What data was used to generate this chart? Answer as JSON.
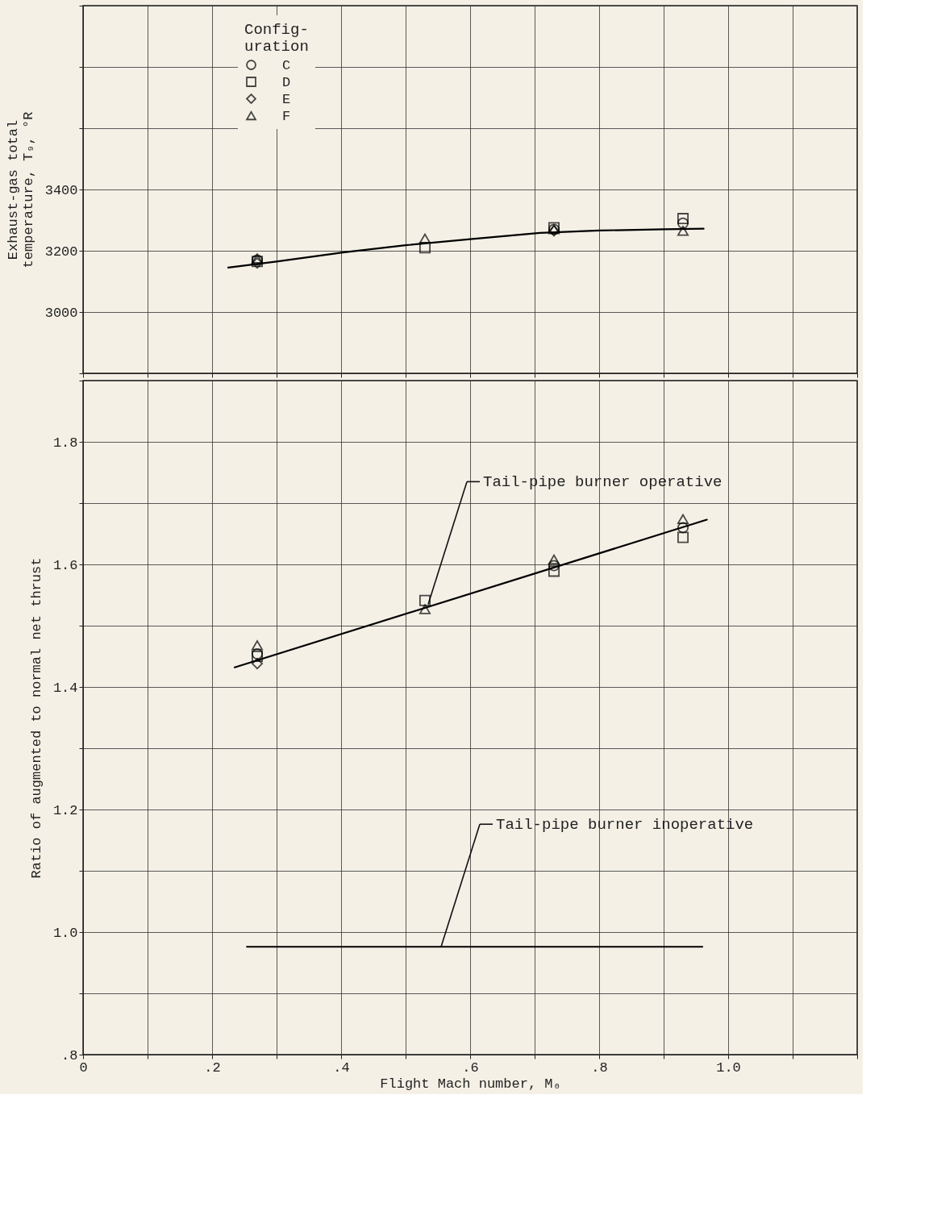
{
  "chart_data": [
    {
      "type": "scatter",
      "ylabel": "Exhaust-gas total\ntemperature, T₉, °R",
      "legend_title": "Config-\nuration",
      "legend": "top left",
      "grid": true,
      "tick_labels": "y",
      "xlim": [
        0,
        1.2
      ],
      "xticks": [
        {
          "value": 0,
          "label": null
        },
        {
          "value": 0.1,
          "label": null
        },
        {
          "value": 0.2,
          "label": null
        },
        {
          "value": 0.3,
          "label": null
        },
        {
          "value": 0.4,
          "label": null
        },
        {
          "value": 0.5,
          "label": null
        },
        {
          "value": 0.6,
          "label": null
        },
        {
          "value": 0.7,
          "label": null
        },
        {
          "value": 0.8,
          "label": null
        },
        {
          "value": 0.9,
          "label": null
        },
        {
          "value": 1.0,
          "label": null
        },
        {
          "value": 1.1,
          "label": null
        },
        {
          "value": 1.2,
          "label": null
        }
      ],
      "ylim": [
        2800,
        4000
      ],
      "yticks": [
        {
          "value": 2800,
          "label": null
        },
        3000,
        3200,
        3400,
        {
          "value": 3600,
          "label": null
        },
        {
          "value": 3800,
          "label": null
        },
        {
          "value": 4000,
          "label": null
        }
      ],
      "series": [
        {
          "name": "C",
          "color": "#000000",
          "marker": "circle",
          "x": [
            0.27,
            0.73,
            0.93
          ],
          "values": [
            3170,
            3270,
            3290
          ]
        },
        {
          "name": "D",
          "color": "#000000",
          "marker": "square",
          "x": [
            0.27,
            0.53,
            0.73,
            0.93
          ],
          "values": [
            3165,
            3210,
            3275,
            3305
          ]
        },
        {
          "name": "E",
          "color": "#000000",
          "marker": "diamond",
          "x": [
            0.27,
            0.73
          ],
          "values": [
            3160,
            3265
          ]
        },
        {
          "name": "F",
          "color": "#000000",
          "marker": "triangle",
          "x": [
            0.27,
            0.53,
            0.73,
            0.93
          ],
          "values": [
            3175,
            3240,
            3270,
            3265
          ]
        },
        {
          "type": "line",
          "color": "#000000",
          "x": [
            0.225,
            0.3,
            0.405,
            0.5,
            0.6,
            0.708,
            0.8,
            0.9,
            0.962
          ],
          "values": [
            3145,
            3165,
            3195,
            3218,
            3238,
            3258,
            3266,
            3270,
            3272
          ]
        }
      ]
    },
    {
      "type": "scatter",
      "xlabel": "Flight Mach number, M₀",
      "ylabel": "Ratio of augmented to normal net thrust",
      "legend": false,
      "grid": true,
      "xlim": [
        0,
        1.2
      ],
      "xticks": [
        0,
        {
          "value": 0.1,
          "label": null
        },
        {
          "value": 0.2,
          "label": ".2"
        },
        {
          "value": 0.3,
          "label": null
        },
        {
          "value": 0.4,
          "label": ".4"
        },
        {
          "value": 0.5,
          "label": null
        },
        {
          "value": 0.6,
          "label": ".6"
        },
        {
          "value": 0.7,
          "label": null
        },
        {
          "value": 0.8,
          "label": ".8"
        },
        {
          "value": 0.9,
          "label": null
        },
        {
          "value": 1.0,
          "label": "1.0"
        },
        {
          "value": 1.1,
          "label": null
        },
        {
          "value": 1.2,
          "label": null
        }
      ],
      "ylim": [
        0.8,
        1.9
      ],
      "yticks": [
        {
          "value": 0.8,
          "label": ".8"
        },
        {
          "value": 0.9,
          "label": null
        },
        {
          "value": 1.0,
          "label": "1.0"
        },
        {
          "value": 1.1,
          "label": null
        },
        1.2,
        {
          "value": 1.3,
          "label": null
        },
        1.4,
        {
          "value": 1.5,
          "label": null
        },
        1.6,
        {
          "value": 1.7,
          "label": null
        },
        1.8,
        {
          "value": 1.9,
          "label": null
        }
      ],
      "series": [
        {
          "color": "#000000",
          "marker": "circle",
          "x": [
            0.27,
            0.73,
            0.93
          ],
          "values": [
            1.454,
            1.598,
            1.66
          ]
        },
        {
          "color": "#000000",
          "marker": "square",
          "x": [
            0.27,
            0.53,
            0.73,
            0.93
          ],
          "values": [
            1.45,
            1.541,
            1.589,
            1.644
          ]
        },
        {
          "color": "#000000",
          "marker": "diamond",
          "x": [
            0.27
          ],
          "values": [
            1.438
          ]
        },
        {
          "color": "#000000",
          "marker": "triangle",
          "x": [
            0.27,
            0.53,
            0.73,
            0.93
          ],
          "values": [
            1.468,
            1.527,
            1.608,
            1.674
          ]
        },
        {
          "type": "line",
          "color": "#000000",
          "x": [
            0.235,
            0.967
          ],
          "values": [
            1.432,
            1.673
          ]
        },
        {
          "type": "line",
          "color": "#000000",
          "x": [
            0.254,
            0.96
          ],
          "values": [
            0.976,
            0.976
          ]
        }
      ],
      "annotations": [
        {
          "text": "Tail-pipe burner operative",
          "x": 0.535,
          "y": 1.535
        },
        {
          "text": "Tail-pipe burner inoperative",
          "x": 0.555,
          "y": 0.976
        }
      ]
    }
  ]
}
